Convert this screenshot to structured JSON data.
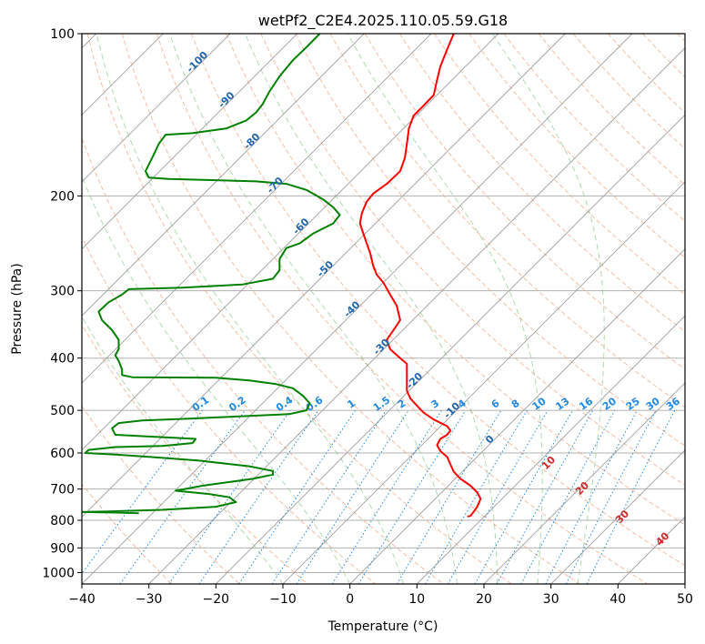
{
  "chart_data": {
    "type": "line",
    "title": "wetPf2_C2E4.2025.110.05.59.G18",
    "xlabel": "Temperature (°C)",
    "ylabel": "Pressure (hPa)",
    "xlim": [
      -40,
      50
    ],
    "ylim": [
      1050,
      100
    ],
    "y_scale": "log",
    "grid": true,
    "x_ticks": [
      -40,
      -30,
      -20,
      -10,
      0,
      10,
      20,
      30,
      40,
      50
    ],
    "y_ticks": [
      100,
      200,
      300,
      400,
      500,
      600,
      700,
      800,
      900,
      1000
    ],
    "x_tick_labels": [
      "−40",
      "−30",
      "−20",
      "−10",
      "0",
      "10",
      "20",
      "30",
      "40",
      "50"
    ],
    "y_tick_labels": [
      "100",
      "200",
      "300",
      "400",
      "500",
      "600",
      "700",
      "800",
      "900",
      "1000"
    ],
    "isotherm_label_color": "#2166ac",
    "isotherm_labels": [
      {
        "text": "-100",
        "t": -100,
        "p": 114
      },
      {
        "text": "-90",
        "t": -90,
        "p": 134
      },
      {
        "text": "-80",
        "t": -80,
        "p": 160
      },
      {
        "text": "-70",
        "t": -70,
        "p": 193
      },
      {
        "text": "-60",
        "t": -60,
        "p": 230
      },
      {
        "text": "-50",
        "t": -50,
        "p": 276
      },
      {
        "text": "-40",
        "t": -40,
        "p": 328
      },
      {
        "text": "-30",
        "t": -30,
        "p": 385
      },
      {
        "text": "-20",
        "t": -20,
        "p": 445
      },
      {
        "text": "-10",
        "t": -10,
        "p": 505
      },
      {
        "text": "0",
        "t": 0,
        "p": 572
      }
    ],
    "dry_adiabat_label_color": "#d62728",
    "dry_adiabat_labels": [
      {
        "text": "10",
        "t": 30,
        "p": 632
      },
      {
        "text": "20",
        "t": 35,
        "p": 705
      },
      {
        "text": "30",
        "t": 41,
        "p": 796
      },
      {
        "text": "40",
        "t": 47,
        "p": 875
      }
    ],
    "mixing_ratio_label_color": "#1e88e5",
    "mixing_ratio_labels": [
      {
        "text": "0.1",
        "t": -22,
        "p": 492
      },
      {
        "text": "0.2",
        "t": -16.5,
        "p": 492
      },
      {
        "text": "0.4",
        "t": -9.5,
        "p": 492
      },
      {
        "text": "0.6",
        "t": -5,
        "p": 492
      },
      {
        "text": "1",
        "t": 0.5,
        "p": 492
      },
      {
        "text": "1.5",
        "t": 5,
        "p": 492
      },
      {
        "text": "2",
        "t": 8,
        "p": 492
      },
      {
        "text": "3",
        "t": 13,
        "p": 492
      },
      {
        "text": "4",
        "t": 17,
        "p": 492
      },
      {
        "text": "6",
        "t": 22,
        "p": 492
      },
      {
        "text": "8",
        "t": 25,
        "p": 492
      },
      {
        "text": "10",
        "t": 28.5,
        "p": 492
      },
      {
        "text": "13",
        "t": 32,
        "p": 492
      },
      {
        "text": "16",
        "t": 35.5,
        "p": 492
      },
      {
        "text": "20",
        "t": 39,
        "p": 492
      },
      {
        "text": "25",
        "t": 42.5,
        "p": 492
      },
      {
        "text": "30",
        "t": 45.5,
        "p": 492
      },
      {
        "text": "36",
        "t": 48.5,
        "p": 492
      }
    ],
    "series": [
      {
        "color": "#ff0000",
        "points": [
          [
            15.5,
            100
          ],
          [
            14.5,
            107
          ],
          [
            13.5,
            115
          ],
          [
            13.0,
            122
          ],
          [
            12.5,
            130
          ],
          [
            11.0,
            136
          ],
          [
            9.5,
            142
          ],
          [
            8.8,
            150
          ],
          [
            8.5,
            160
          ],
          [
            8.2,
            170
          ],
          [
            7.5,
            180
          ],
          [
            5.5,
            190
          ],
          [
            3.5,
            198
          ],
          [
            2.5,
            205
          ],
          [
            1.8,
            215
          ],
          [
            1.5,
            225
          ],
          [
            2.0,
            235
          ],
          [
            2.5,
            245
          ],
          [
            3.0,
            255
          ],
          [
            3.5,
            270
          ],
          [
            4.0,
            280
          ],
          [
            5.0,
            290
          ],
          [
            6.0,
            305
          ],
          [
            7.0,
            320
          ],
          [
            7.5,
            340
          ],
          [
            6.5,
            355
          ],
          [
            5.5,
            370
          ],
          [
            6.0,
            385
          ],
          [
            7.5,
            400
          ],
          [
            8.5,
            410
          ],
          [
            8.5,
            420
          ],
          [
            8.5,
            440
          ],
          [
            8.5,
            460
          ],
          [
            9.0,
            475
          ],
          [
            10.0,
            490
          ],
          [
            11.0,
            505
          ],
          [
            12.5,
            520
          ],
          [
            14.5,
            535
          ],
          [
            15.0,
            545
          ],
          [
            14.5,
            555
          ],
          [
            13.5,
            565
          ],
          [
            13.0,
            580
          ],
          [
            13.5,
            595
          ],
          [
            14.5,
            610
          ],
          [
            15.0,
            630
          ],
          [
            15.5,
            650
          ],
          [
            16.5,
            670
          ],
          [
            18.0,
            690
          ],
          [
            19.0,
            710
          ],
          [
            19.5,
            730
          ],
          [
            19.0,
            755
          ],
          [
            18.5,
            770
          ],
          [
            18.0,
            785
          ],
          [
            17.5,
            787
          ]
        ]
      },
      {
        "color": "#008000",
        "points": [
          [
            -4.5,
            100
          ],
          [
            -6.5,
            106
          ],
          [
            -8.5,
            112
          ],
          [
            -10.5,
            120
          ],
          [
            -12.0,
            128
          ],
          [
            -13.0,
            135
          ],
          [
            -14.0,
            140
          ],
          [
            -15.5,
            145
          ],
          [
            -18.5,
            150
          ],
          [
            -23.5,
            153
          ],
          [
            -27.5,
            154
          ],
          [
            -28.5,
            160
          ],
          [
            -29.5,
            170
          ],
          [
            -30.5,
            180
          ],
          [
            -30.0,
            185
          ],
          [
            -27.0,
            186
          ],
          [
            -20.0,
            187
          ],
          [
            -14.0,
            188
          ],
          [
            -9.5,
            190
          ],
          [
            -6.5,
            195
          ],
          [
            -4.0,
            203
          ],
          [
            -2.5,
            210
          ],
          [
            -1.5,
            217
          ],
          [
            -2.5,
            225
          ],
          [
            -5.5,
            235
          ],
          [
            -7.5,
            245
          ],
          [
            -9.5,
            250
          ],
          [
            -10.5,
            262
          ],
          [
            -10.5,
            275
          ],
          [
            -11.5,
            285
          ],
          [
            -16.0,
            292
          ],
          [
            -25.0,
            296
          ],
          [
            -33.0,
            298
          ],
          [
            -34.0,
            305
          ],
          [
            -36.0,
            315
          ],
          [
            -37.5,
            328
          ],
          [
            -37.0,
            340
          ],
          [
            -35.5,
            355
          ],
          [
            -34.5,
            370
          ],
          [
            -34.5,
            385
          ],
          [
            -35.0,
            395
          ],
          [
            -34.5,
            405
          ],
          [
            -34.0,
            420
          ],
          [
            -34.0,
            430
          ],
          [
            -32.5,
            434
          ],
          [
            -20.0,
            435
          ],
          [
            -15.0,
            440
          ],
          [
            -11.0,
            447
          ],
          [
            -8.5,
            455
          ],
          [
            -7.0,
            470
          ],
          [
            -6.0,
            485
          ],
          [
            -6.5,
            500
          ],
          [
            -9.0,
            508
          ],
          [
            -15.0,
            512
          ],
          [
            -24.0,
            518
          ],
          [
            -31.0,
            522
          ],
          [
            -34.5,
            528
          ],
          [
            -35.5,
            540
          ],
          [
            -35.0,
            555
          ],
          [
            -29.0,
            560
          ],
          [
            -23.0,
            565
          ],
          [
            -23.5,
            575
          ],
          [
            -28.0,
            582
          ],
          [
            -35.0,
            585
          ],
          [
            -39.0,
            592
          ],
          [
            -39.5,
            600
          ],
          [
            -35.0,
            604
          ],
          [
            -30.0,
            610
          ],
          [
            -22.5,
            620
          ],
          [
            -15.0,
            635
          ],
          [
            -11.5,
            648
          ],
          [
            -11.5,
            658
          ],
          [
            -14.5,
            670
          ],
          [
            -22.0,
            690
          ],
          [
            -26.0,
            705
          ],
          [
            -21.0,
            715
          ],
          [
            -18.0,
            725
          ],
          [
            -17.0,
            740
          ],
          [
            -20.0,
            755
          ],
          [
            -28.0,
            765
          ],
          [
            -36.0,
            770
          ],
          [
            -40.0,
            772
          ],
          [
            -35.0,
            774
          ],
          [
            -31.5,
            776
          ]
        ]
      }
    ]
  }
}
